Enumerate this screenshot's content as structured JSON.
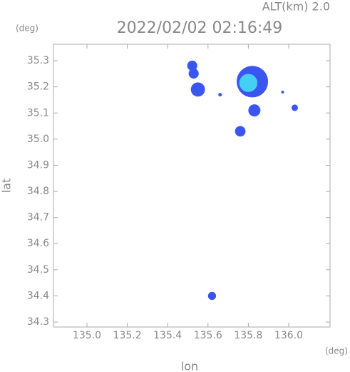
{
  "chart_data": {
    "type": "scatter",
    "title": "2022/02/02 02:16:49",
    "subtitle": "ALT(km) 2.0",
    "y_unit": "(deg)",
    "x_unit": "(deg)",
    "x_label": "lon",
    "y_label": "lat",
    "xlim": [
      134.834,
      136.205
    ],
    "ylim": [
      34.281,
      35.363
    ],
    "xticks": [
      {
        "value": 135.0,
        "label": "135.0"
      },
      135.2,
      135.4,
      135.6,
      135.8,
      {
        "value": 136.0,
        "label": "136.0"
      }
    ],
    "yticks": [
      34.3,
      34.4,
      34.5,
      34.6,
      34.7,
      34.8,
      34.9,
      {
        "value": 35.0,
        "label": "35.0"
      },
      35.1,
      35.2,
      35.3
    ],
    "series": [
      {
        "color": "#3b55f0",
        "x": [
          135.522,
          135.529,
          135.55,
          135.82,
          135.83,
          135.76,
          136.03,
          135.97,
          135.66,
          135.62
        ],
        "values": [
          35.281,
          35.251,
          35.19,
          35.22,
          35.11,
          35.03,
          35.12,
          35.18,
          35.17,
          34.4
        ],
        "sizes": [
          0.025,
          0.025,
          0.035,
          0.078,
          0.03,
          0.026,
          0.016,
          0.007,
          0.009,
          0.02
        ]
      },
      {
        "color": "#44d0f2",
        "x": [
          135.8
        ],
        "values": [
          35.215
        ],
        "sizes": [
          0.045
        ]
      }
    ]
  }
}
